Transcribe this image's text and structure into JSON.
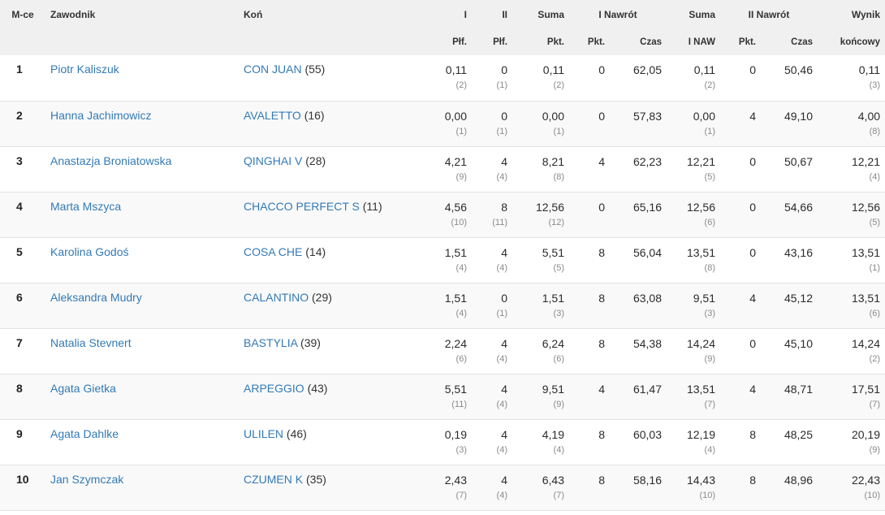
{
  "header": {
    "place": "M-ce",
    "rider": "Zawodnik",
    "horse": "Koń",
    "round1": "I",
    "round2": "II",
    "sum": "Suma",
    "jumpoff1": "I Nawrót",
    "sum2": "Suma",
    "jumpoff2": "II Nawrót",
    "result": "Wynik"
  },
  "subheader": {
    "round1": "Płf.",
    "round2": "Płf.",
    "sum": "Pkt.",
    "jumpoff1_pts": "Pkt.",
    "jumpoff1_time": "Czas",
    "sum2": "I NAW",
    "jumpoff2_pts": "Pkt.",
    "jumpoff2_time": "Czas",
    "result": "końcowy"
  },
  "rows": [
    {
      "place": "1",
      "rider": "Piotr Kaliszuk",
      "horse": "CON JUAN",
      "horse_num": " (55)",
      "r1": "0,11",
      "r1_rank": "(2)",
      "r2": "0",
      "r2_rank": "(1)",
      "sum": "0,11",
      "sum_rank": "(2)",
      "j1_pts": "0",
      "j1_time": "62,05",
      "sum2": "0,11",
      "sum2_rank": "(2)",
      "j2_pts": "0",
      "j2_time": "50,46",
      "result": "0,11",
      "result_rank": "(3)"
    },
    {
      "place": "2",
      "rider": "Hanna Jachimowicz",
      "horse": "AVALETTO",
      "horse_num": " (16)",
      "r1": "0,00",
      "r1_rank": "(1)",
      "r2": "0",
      "r2_rank": "(1)",
      "sum": "0,00",
      "sum_rank": "(1)",
      "j1_pts": "0",
      "j1_time": "57,83",
      "sum2": "0,00",
      "sum2_rank": "(1)",
      "j2_pts": "4",
      "j2_time": "49,10",
      "result": "4,00",
      "result_rank": "(8)"
    },
    {
      "place": "3",
      "rider": "Anastazja Broniatowska",
      "horse": "QINGHAI V",
      "horse_num": " (28)",
      "r1": "4,21",
      "r1_rank": "(9)",
      "r2": "4",
      "r2_rank": "(4)",
      "sum": "8,21",
      "sum_rank": "(8)",
      "j1_pts": "4",
      "j1_time": "62,23",
      "sum2": "12,21",
      "sum2_rank": "(5)",
      "j2_pts": "0",
      "j2_time": "50,67",
      "result": "12,21",
      "result_rank": "(4)"
    },
    {
      "place": "4",
      "rider": "Marta Mszyca",
      "horse": "CHACCO PERFECT S",
      "horse_num": " (11)",
      "r1": "4,56",
      "r1_rank": "(10)",
      "r2": "8",
      "r2_rank": "(11)",
      "sum": "12,56",
      "sum_rank": "(12)",
      "j1_pts": "0",
      "j1_time": "65,16",
      "sum2": "12,56",
      "sum2_rank": "(6)",
      "j2_pts": "0",
      "j2_time": "54,66",
      "result": "12,56",
      "result_rank": "(5)"
    },
    {
      "place": "5",
      "rider": "Karolina Godoś",
      "horse": "COSA CHE",
      "horse_num": " (14)",
      "r1": "1,51",
      "r1_rank": "(4)",
      "r2": "4",
      "r2_rank": "(4)",
      "sum": "5,51",
      "sum_rank": "(5)",
      "j1_pts": "8",
      "j1_time": "56,04",
      "sum2": "13,51",
      "sum2_rank": "(8)",
      "j2_pts": "0",
      "j2_time": "43,16",
      "result": "13,51",
      "result_rank": "(1)"
    },
    {
      "place": "6",
      "rider": "Aleksandra Mudry",
      "horse": "CALANTINO",
      "horse_num": " (29)",
      "r1": "1,51",
      "r1_rank": "(4)",
      "r2": "0",
      "r2_rank": "(1)",
      "sum": "1,51",
      "sum_rank": "(3)",
      "j1_pts": "8",
      "j1_time": "63,08",
      "sum2": "9,51",
      "sum2_rank": "(3)",
      "j2_pts": "4",
      "j2_time": "45,12",
      "result": "13,51",
      "result_rank": "(6)"
    },
    {
      "place": "7",
      "rider": "Natalia Stevnert",
      "horse": "BASTYLIA",
      "horse_num": " (39)",
      "r1": "2,24",
      "r1_rank": "(6)",
      "r2": "4",
      "r2_rank": "(4)",
      "sum": "6,24",
      "sum_rank": "(6)",
      "j1_pts": "8",
      "j1_time": "54,38",
      "sum2": "14,24",
      "sum2_rank": "(9)",
      "j2_pts": "0",
      "j2_time": "45,10",
      "result": "14,24",
      "result_rank": "(2)"
    },
    {
      "place": "8",
      "rider": "Agata Gietka",
      "horse": "ARPEGGIO",
      "horse_num": " (43)",
      "r1": "5,51",
      "r1_rank": "(11)",
      "r2": "4",
      "r2_rank": "(4)",
      "sum": "9,51",
      "sum_rank": "(9)",
      "j1_pts": "4",
      "j1_time": "61,47",
      "sum2": "13,51",
      "sum2_rank": "(7)",
      "j2_pts": "4",
      "j2_time": "48,71",
      "result": "17,51",
      "result_rank": "(7)"
    },
    {
      "place": "9",
      "rider": "Agata Dahlke",
      "horse": "ULILEN",
      "horse_num": " (46)",
      "r1": "0,19",
      "r1_rank": "(3)",
      "r2": "4",
      "r2_rank": "(4)",
      "sum": "4,19",
      "sum_rank": "(4)",
      "j1_pts": "8",
      "j1_time": "60,03",
      "sum2": "12,19",
      "sum2_rank": "(4)",
      "j2_pts": "8",
      "j2_time": "48,25",
      "result": "20,19",
      "result_rank": "(9)"
    },
    {
      "place": "10",
      "rider": "Jan Szymczak",
      "horse": "CZUMEN K",
      "horse_num": " (35)",
      "r1": "2,43",
      "r1_rank": "(7)",
      "r2": "4",
      "r2_rank": "(4)",
      "sum": "6,43",
      "sum_rank": "(7)",
      "j1_pts": "8",
      "j1_time": "58,16",
      "sum2": "14,43",
      "sum2_rank": "(10)",
      "j2_pts": "8",
      "j2_time": "48,96",
      "result": "22,43",
      "result_rank": "(10)"
    }
  ],
  "colors": {
    "link": "#337ab7",
    "header_bg": "#f0f0f0",
    "row_alt": "#f9f9f9"
  }
}
